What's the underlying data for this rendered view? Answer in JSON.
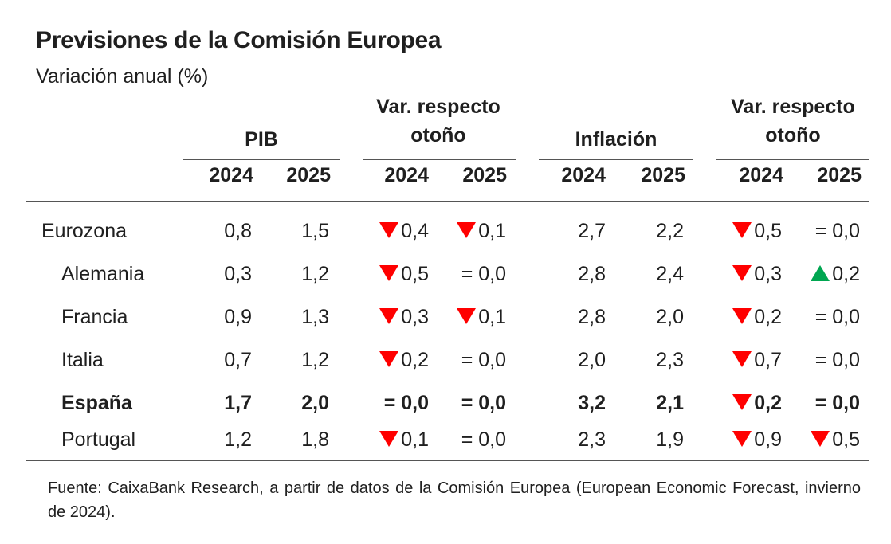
{
  "chart_data": {
    "type": "table",
    "title": "Previsiones de la Comisión Europea",
    "subtitle": "Variación anual (%)",
    "group_headers": {
      "pib": "PIB",
      "var_pib": "Var. respecto otoño",
      "inflacion": "Inflación",
      "var_inflacion": "Var. respecto otoño"
    },
    "year_headers": [
      "2024",
      "2025",
      "2024",
      "2025",
      "2024",
      "2025",
      "2024",
      "2025"
    ],
    "rows": [
      {
        "label": "Eurozona",
        "bold": false,
        "indent": false,
        "cells": [
          {
            "value": "0,8"
          },
          {
            "value": "1,5"
          },
          {
            "value": "0,4",
            "dir": "down"
          },
          {
            "value": "0,1",
            "dir": "down"
          },
          {
            "value": "2,7"
          },
          {
            "value": "2,2"
          },
          {
            "value": "0,5",
            "dir": "down"
          },
          {
            "value": "= 0,0",
            "dir": "eq"
          }
        ]
      },
      {
        "label": "Alemania",
        "bold": false,
        "indent": true,
        "cells": [
          {
            "value": "0,3"
          },
          {
            "value": "1,2"
          },
          {
            "value": "0,5",
            "dir": "down"
          },
          {
            "value": "= 0,0",
            "dir": "eq"
          },
          {
            "value": "2,8"
          },
          {
            "value": "2,4"
          },
          {
            "value": "0,3",
            "dir": "down"
          },
          {
            "value": "0,2",
            "dir": "up"
          }
        ]
      },
      {
        "label": "Francia",
        "bold": false,
        "indent": true,
        "cells": [
          {
            "value": "0,9"
          },
          {
            "value": "1,3"
          },
          {
            "value": "0,3",
            "dir": "down"
          },
          {
            "value": "0,1",
            "dir": "down"
          },
          {
            "value": "2,8"
          },
          {
            "value": "2,0"
          },
          {
            "value": "0,2",
            "dir": "down"
          },
          {
            "value": "= 0,0",
            "dir": "eq"
          }
        ]
      },
      {
        "label": "Italia",
        "bold": false,
        "indent": true,
        "cells": [
          {
            "value": "0,7"
          },
          {
            "value": "1,2"
          },
          {
            "value": "0,2",
            "dir": "down"
          },
          {
            "value": "= 0,0",
            "dir": "eq"
          },
          {
            "value": "2,0"
          },
          {
            "value": "2,3"
          },
          {
            "value": "0,7",
            "dir": "down"
          },
          {
            "value": "= 0,0",
            "dir": "eq"
          }
        ]
      },
      {
        "label": "España",
        "bold": true,
        "indent": true,
        "cells": [
          {
            "value": "1,7"
          },
          {
            "value": "2,0"
          },
          {
            "value": "= 0,0",
            "dir": "eq"
          },
          {
            "value": "= 0,0",
            "dir": "eq"
          },
          {
            "value": "3,2"
          },
          {
            "value": "2,1"
          },
          {
            "value": "0,2",
            "dir": "down"
          },
          {
            "value": "= 0,0",
            "dir": "eq"
          }
        ]
      },
      {
        "label": "Portugal",
        "bold": false,
        "indent": true,
        "cells": [
          {
            "value": "1,2"
          },
          {
            "value": "1,8"
          },
          {
            "value": "0,1",
            "dir": "down"
          },
          {
            "value": "= 0,0",
            "dir": "eq"
          },
          {
            "value": "2,3"
          },
          {
            "value": "1,9"
          },
          {
            "value": "0,9",
            "dir": "down"
          },
          {
            "value": "0,5",
            "dir": "down"
          }
        ]
      }
    ],
    "note": "Fuente: CaixaBank Research, a partir de datos de la Comisión Europea (European Economic Forecast, invierno de 2024)."
  },
  "colors": {
    "down": "#ff0000",
    "up": "#00a651",
    "rule": "#555555"
  }
}
